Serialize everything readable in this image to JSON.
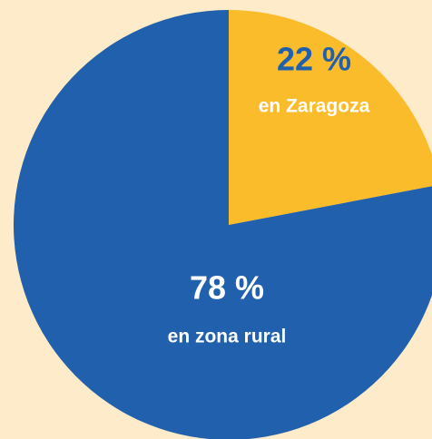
{
  "chart_data": {
    "type": "pie",
    "categories": [
      "en Zaragoza",
      "en zona rural"
    ],
    "values": [
      22,
      78
    ],
    "value_labels": [
      "22 %",
      "78 %"
    ],
    "colors": [
      "#fbbc2c",
      "#2160ad"
    ]
  }
}
